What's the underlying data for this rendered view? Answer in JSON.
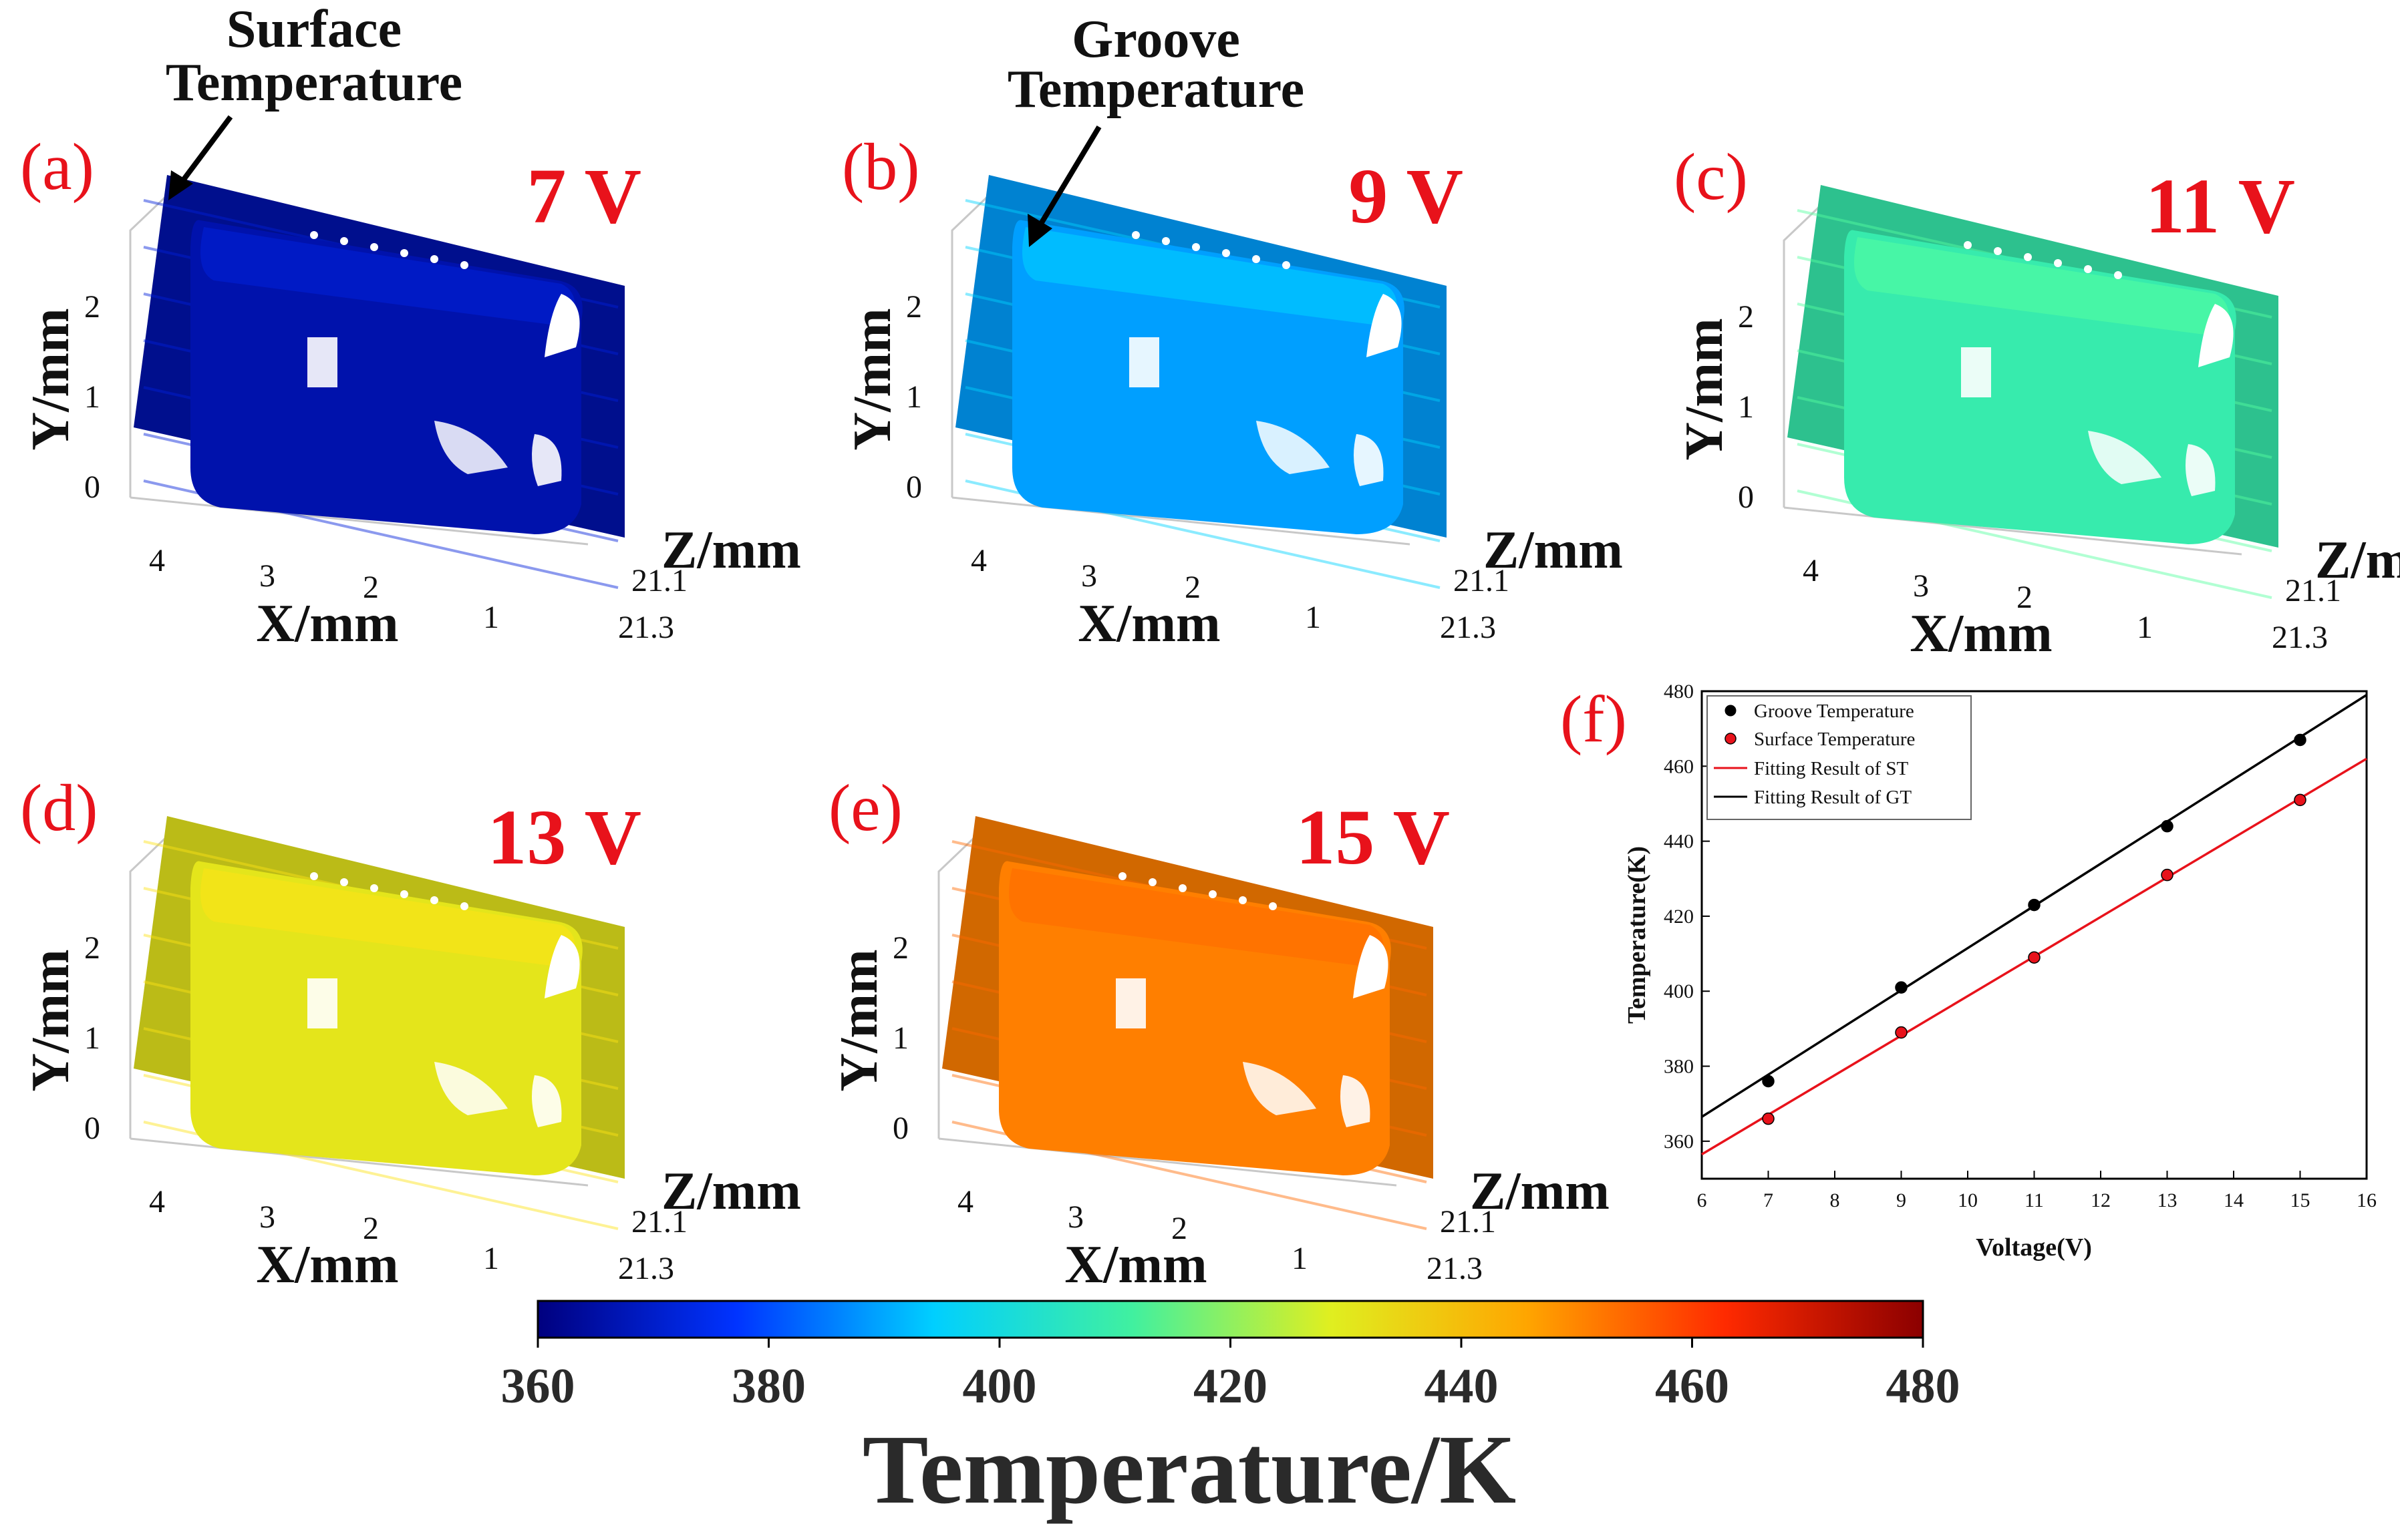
{
  "panels": [
    {
      "label": "(a)",
      "voltage": "7 V",
      "temperature_K": 366,
      "annotation": [
        "Surface",
        "Temperature"
      ]
    },
    {
      "label": "(b)",
      "voltage": "9 V",
      "temperature_K": 389,
      "annotation": [
        "Groove",
        "Temperature"
      ]
    },
    {
      "label": "(c)",
      "voltage": "11 V",
      "temperature_K": 409
    },
    {
      "label": "(d)",
      "voltage": "13 V",
      "temperature_K": 431
    },
    {
      "label": "(e)",
      "voltage": "15 V",
      "temperature_K": 451
    }
  ],
  "axis3d": {
    "x_label": "X/mm",
    "y_label": "Y/mm",
    "z_label": "Z/mm",
    "x_ticks": [
      "4",
      "3",
      "2",
      "1"
    ],
    "y_ticks": [
      "0",
      "1",
      "2"
    ],
    "z_ticks": [
      "21.1",
      "21.3"
    ]
  },
  "colorbar": {
    "title": "Temperature/K",
    "range": [
      360,
      480
    ],
    "ticks": [
      "360",
      "380",
      "400",
      "420",
      "440",
      "460",
      "480"
    ],
    "colormap": [
      "#00007f",
      "#0033ff",
      "#00cfff",
      "#40f0a0",
      "#dfef20",
      "#ffa500",
      "#ff2a00",
      "#8b0000"
    ]
  },
  "chart_data": {
    "type": "scatter",
    "panel_label": "(f)",
    "xlabel": "Voltage(V)",
    "ylabel": "Temperature(K)",
    "xlim": [
      6,
      16
    ],
    "ylim": [
      350,
      480
    ],
    "x_ticks": [
      "6",
      "7",
      "8",
      "9",
      "10",
      "11",
      "12",
      "13",
      "14",
      "15",
      "16"
    ],
    "y_ticks": [
      "360",
      "380",
      "400",
      "420",
      "440",
      "460",
      "480"
    ],
    "legend_position": "top-left",
    "series": [
      {
        "name": "Groove Temperature",
        "kind": "points",
        "color": "#000000",
        "x": [
          7,
          9,
          11,
          13,
          15
        ],
        "y": [
          376,
          401,
          423,
          444,
          467
        ]
      },
      {
        "name": "Surface Temperature",
        "kind": "points",
        "color": "#e8121b",
        "x": [
          7,
          9,
          11,
          13,
          15
        ],
        "y": [
          366,
          389,
          409,
          431,
          451
        ]
      },
      {
        "name": "Fitting Result of ST",
        "kind": "line",
        "color": "#e8121b",
        "x": [
          6,
          16
        ],
        "y": [
          356.5,
          462
        ]
      },
      {
        "name": "Fitting Result of GT",
        "kind": "line",
        "color": "#000000",
        "x": [
          6,
          16
        ],
        "y": [
          366.5,
          479
        ]
      }
    ]
  }
}
